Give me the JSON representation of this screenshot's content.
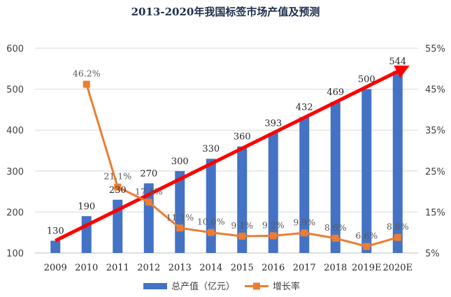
{
  "chart_data": {
    "type": "bar",
    "title": "2013-2020年我国标签市场产值及预测",
    "categories": [
      "2009",
      "2010",
      "2011",
      "2012",
      "2013",
      "2014",
      "2015",
      "2016",
      "2017",
      "2018",
      "2019E",
      "2020E"
    ],
    "series": [
      {
        "name": "总产值（亿元）",
        "type": "bar",
        "axis": "left",
        "color": "#4472c4",
        "values": [
          130,
          190,
          230,
          270,
          300,
          330,
          360,
          393,
          432,
          469,
          500,
          544
        ],
        "labels": [
          "130",
          "190",
          "230",
          "270",
          "300",
          "330",
          "360",
          "393",
          "432",
          "469",
          "500",
          "544"
        ]
      },
      {
        "name": "增长率",
        "type": "line",
        "axis": "right",
        "color": "#ed7d31",
        "values": [
          null,
          46.2,
          21.1,
          17.4,
          11.1,
          10.0,
          9.1,
          9.2,
          9.9,
          8.6,
          6.6,
          8.8
        ],
        "labels": [
          null,
          "46.2%",
          "21.1%",
          "17.4%",
          "11.1%",
          "10.0%",
          "9.1%",
          "9.2%",
          "9.9%",
          "8.6%",
          "6.6%",
          "8.8%"
        ]
      }
    ],
    "y_left": {
      "lim": [
        100,
        600
      ],
      "ticks": [
        "100",
        "200",
        "300",
        "400",
        "500",
        "600"
      ]
    },
    "y_right": {
      "lim": [
        5,
        55
      ],
      "ticks": [
        "5%",
        "15%",
        "25%",
        "35%",
        "45%",
        "55%"
      ]
    },
    "trend_arrow": {
      "color": "#ff0000",
      "from": 130,
      "to": 550
    },
    "grid": true,
    "legend_position": "bottom"
  }
}
